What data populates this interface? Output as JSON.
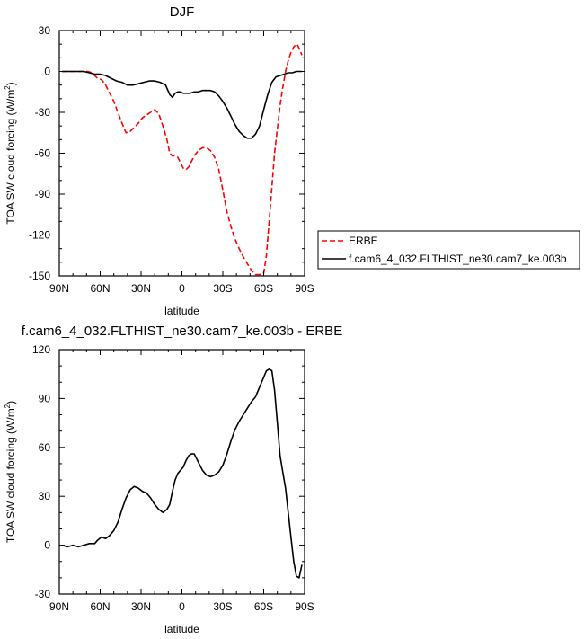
{
  "chart_data": [
    {
      "type": "line",
      "title": "DJF",
      "xlabel": "latitude",
      "ylabel": "TOA SW cloud forcing (W/m",
      "ylabel_sup": "2",
      "ylabel_end": ")",
      "xlim": [
        90,
        -90
      ],
      "ylim": [
        -150,
        30
      ],
      "xticks": [
        90,
        60,
        30,
        0,
        -30,
        -60,
        -90
      ],
      "xtick_labels": [
        "90N",
        "60N",
        "30N",
        "0",
        "30S",
        "60S",
        "90S"
      ],
      "yticks": [
        30,
        0,
        -30,
        -60,
        -90,
        -120,
        -150
      ],
      "ytick_labels": [
        "30",
        "0",
        "-30",
        "-60",
        "-90",
        "-120",
        "-150"
      ],
      "legend_position": "right",
      "series": [
        {
          "name": "ERBE",
          "color": "#ff0000",
          "dash": "dashed",
          "x": [
            88,
            84,
            80,
            76,
            72,
            69,
            66,
            62,
            59,
            56,
            53,
            50,
            47,
            44,
            41,
            38,
            35,
            32,
            29,
            26,
            23,
            20,
            17,
            14,
            11,
            9,
            7,
            5,
            3,
            1,
            -1,
            -3,
            -5,
            -7,
            -9,
            -12,
            -15,
            -18,
            -21,
            -24,
            -27,
            -30,
            -33,
            -36,
            -39,
            -42,
            -45,
            -48,
            -51,
            -54,
            -57,
            -60,
            -62,
            -64,
            -66,
            -68,
            -70,
            -72,
            -74,
            -76,
            -78,
            -80,
            -82,
            -84,
            -85,
            -86,
            -88
          ],
          "y": [
            0,
            0,
            0,
            0,
            0,
            0,
            -1,
            -5,
            -6,
            -10,
            -16,
            -22,
            -30,
            -38,
            -45,
            -44,
            -41,
            -38,
            -34,
            -32,
            -30,
            -28,
            -31,
            -40,
            -50,
            -60,
            -62,
            -62,
            -63,
            -67,
            -71,
            -72,
            -70,
            -66,
            -62,
            -58,
            -56,
            -56,
            -58,
            -63,
            -72,
            -87,
            -103,
            -114,
            -123,
            -130,
            -136,
            -141,
            -146,
            -149,
            -149,
            -148,
            -135,
            -110,
            -85,
            -60,
            -42,
            -25,
            -12,
            0,
            8,
            14,
            18,
            20,
            19,
            17,
            12
          ]
        },
        {
          "name": "f.cam6_4_032.FLTHIST_ne30.cam7_ke.003b",
          "color": "#000000",
          "dash": "solid",
          "x": [
            88,
            84,
            80,
            76,
            72,
            68,
            64,
            60,
            56,
            52,
            48,
            44,
            40,
            36,
            32,
            28,
            24,
            20,
            16,
            12,
            9,
            7,
            5,
            3,
            1,
            -1,
            -3,
            -6,
            -9,
            -12,
            -15,
            -18,
            -21,
            -24,
            -27,
            -30,
            -33,
            -36,
            -39,
            -42,
            -45,
            -48,
            -51,
            -54,
            -57,
            -60,
            -63,
            -66,
            -69,
            -72,
            -75,
            -78,
            -81,
            -84,
            -88
          ],
          "y": [
            0,
            0,
            0,
            0,
            0,
            -1,
            -2,
            -2,
            -3,
            -5,
            -7,
            -8,
            -10,
            -10,
            -9,
            -8,
            -7,
            -7,
            -8,
            -10,
            -17,
            -19,
            -16,
            -15,
            -15,
            -16,
            -16,
            -16,
            -15,
            -15,
            -14,
            -14,
            -14,
            -15,
            -18,
            -22,
            -27,
            -33,
            -39,
            -44,
            -47,
            -49,
            -49,
            -46,
            -40,
            -28,
            -17,
            -8,
            -4,
            -3,
            -2,
            -1,
            -1,
            0,
            0
          ]
        }
      ]
    },
    {
      "type": "line",
      "title": "f.cam6_4_032.FLTHIST_ne30.cam7_ke.003b - ERBE",
      "xlabel": "latitude",
      "ylabel": "TOA SW cloud forcing (W/m",
      "ylabel_sup": "2",
      "ylabel_end": ")",
      "xlim": [
        90,
        -90
      ],
      "ylim": [
        -30,
        120
      ],
      "xticks": [
        90,
        60,
        30,
        0,
        -30,
        -60,
        -90
      ],
      "xtick_labels": [
        "90N",
        "60N",
        "30N",
        "0",
        "30S",
        "60S",
        "90S"
      ],
      "yticks": [
        120,
        90,
        60,
        30,
        0,
        -30
      ],
      "ytick_labels": [
        "120",
        "90",
        "60",
        "30",
        "0",
        "-30"
      ],
      "series": [
        {
          "color": "#000000",
          "dash": "solid",
          "x": [
            88,
            84,
            80,
            76,
            72,
            68,
            64,
            62,
            59,
            56,
            53,
            50,
            47,
            44,
            41,
            38,
            35,
            32,
            29,
            26,
            23,
            20,
            17,
            14,
            11,
            9,
            7,
            5,
            3,
            1,
            -1,
            -3,
            -5,
            -7,
            -9,
            -12,
            -15,
            -18,
            -21,
            -24,
            -27,
            -30,
            -33,
            -36,
            -39,
            -42,
            -45,
            -48,
            -51,
            -54,
            -57,
            -60,
            -62,
            -64,
            -66,
            -68,
            -70,
            -72,
            -74,
            -76,
            -78,
            -80,
            -82,
            -84,
            -86,
            -88
          ],
          "y": [
            0,
            -1,
            0,
            -1,
            0,
            1,
            1,
            3,
            5,
            4,
            6,
            9,
            14,
            22,
            29,
            34,
            36,
            35,
            33,
            32,
            29,
            25,
            22,
            20,
            22,
            25,
            33,
            40,
            44,
            46,
            48,
            52,
            55,
            56,
            56,
            51,
            46,
            43,
            42,
            43,
            45,
            49,
            56,
            64,
            71,
            76,
            80,
            84,
            88,
            91,
            97,
            103,
            107,
            108,
            107,
            95,
            75,
            55,
            45,
            35,
            20,
            5,
            -10,
            -19,
            -20,
            -12
          ]
        }
      ]
    }
  ]
}
